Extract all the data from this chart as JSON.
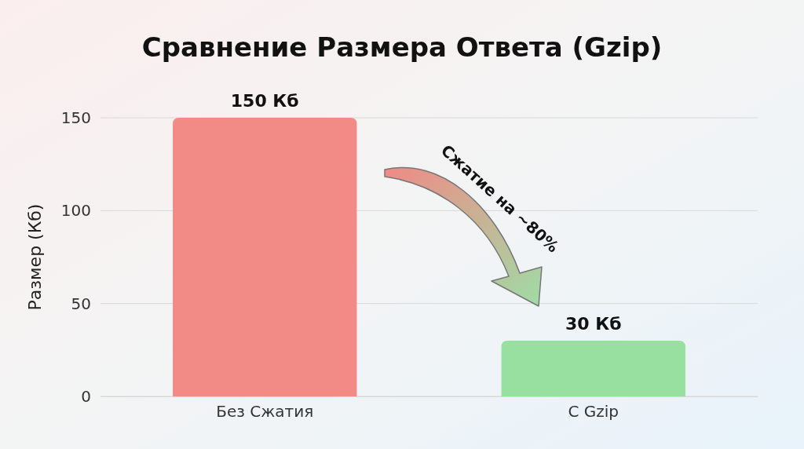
{
  "chart_data": {
    "type": "bar",
    "title": "Сравнение Размера Ответа (Gzip)",
    "ylabel": "Размер (Кб)",
    "categories": [
      "Без Сжатия",
      "С Gzip"
    ],
    "values": [
      150,
      30
    ],
    "colors": [
      "#f28b86",
      "#98e0a0"
    ],
    "value_labels": [
      "150 Кб",
      "30 Кб"
    ],
    "ylim": [
      0,
      150
    ],
    "yticks": [
      0,
      50,
      100,
      150
    ],
    "grid": "y",
    "annotations": [
      "Сжатие на ~80%"
    ]
  }
}
